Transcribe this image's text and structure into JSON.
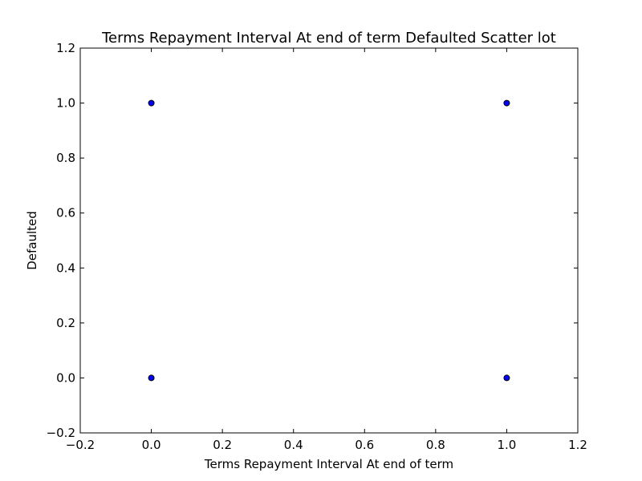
{
  "chart_data": {
    "type": "scatter",
    "title": "Terms Repayment Interval At end of term Defaulted Scatter lot",
    "xlabel": "Terms Repayment Interval At end of term",
    "ylabel": "Defaulted",
    "xlim": [
      -0.2,
      1.2
    ],
    "ylim": [
      -0.2,
      1.2
    ],
    "xticks": [
      -0.2,
      0.0,
      0.2,
      0.4,
      0.6,
      0.8,
      1.0,
      1.2
    ],
    "yticks": [
      -0.2,
      0.0,
      0.2,
      0.4,
      0.6,
      0.8,
      1.0,
      1.2
    ],
    "xtick_labels": [
      "−0.2",
      "0.0",
      "0.2",
      "0.4",
      "0.6",
      "0.8",
      "1.0",
      "1.2"
    ],
    "ytick_labels": [
      "−0.2",
      "0.0",
      "0.2",
      "0.4",
      "0.6",
      "0.8",
      "1.0",
      "1.2"
    ],
    "grid": false,
    "series": [
      {
        "color": "#0000ff",
        "points": [
          {
            "x": 0,
            "y": 0
          },
          {
            "x": 0,
            "y": 1
          },
          {
            "x": 1,
            "y": 0
          },
          {
            "x": 1,
            "y": 1
          }
        ]
      }
    ]
  }
}
